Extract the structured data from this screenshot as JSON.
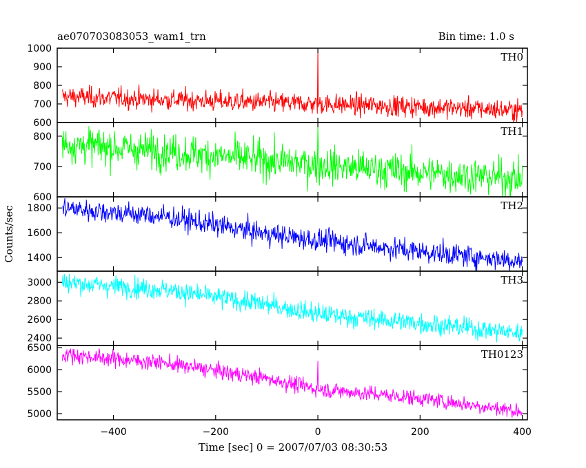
{
  "chart_data": {
    "type": "line",
    "title": "ae070703083053_wam1_trn",
    "bin_time": "Bin time: 1.0 s",
    "xlabel": "Time [sec] 0 = 2007/07/03 08:30:53",
    "ylabel": "Counts/sec",
    "xlim": [
      -510,
      410
    ],
    "x_ticks": [
      -400,
      -200,
      0,
      200,
      400
    ],
    "x_tick_labels": [
      "−400",
      "−200",
      "0",
      "200",
      "400"
    ],
    "bin_seconds": 1.0,
    "x_range": [
      -500,
      400
    ],
    "grid": false,
    "legend": "none",
    "panels": [
      {
        "name": "TH0",
        "color": "#ff0000",
        "ylim": [
          600,
          1000
        ],
        "yticks": [
          600,
          700,
          800,
          900,
          1000
        ],
        "trend": [
          [
            -500,
            740
          ],
          [
            -200,
            715
          ],
          [
            0,
            700
          ],
          [
            200,
            685
          ],
          [
            400,
            665
          ]
        ],
        "noise_sd": 28,
        "spikes": [
          {
            "x": 0,
            "y": 1000
          }
        ]
      },
      {
        "name": "TH1",
        "color": "#00ff00",
        "ylim": [
          600,
          845
        ],
        "yticks": [
          600,
          700,
          800
        ],
        "trend": [
          [
            -500,
            775
          ],
          [
            -300,
            750
          ],
          [
            -100,
            720
          ],
          [
            0,
            705
          ],
          [
            200,
            680
          ],
          [
            400,
            660
          ]
        ],
        "noise_sd": 30,
        "spikes": [
          {
            "x": 0,
            "y": 830
          }
        ]
      },
      {
        "name": "TH2",
        "color": "#0000ff",
        "ylim": [
          1290,
          1890
        ],
        "yticks": [
          1400,
          1600,
          1800
        ],
        "trend": [
          [
            -500,
            1800
          ],
          [
            -300,
            1730
          ],
          [
            -100,
            1590
          ],
          [
            0,
            1540
          ],
          [
            200,
            1450
          ],
          [
            400,
            1370
          ]
        ],
        "noise_sd": 45,
        "spikes": []
      },
      {
        "name": "TH3",
        "color": "#00ffff",
        "ylim": [
          2320,
          3120
        ],
        "yticks": [
          2400,
          2600,
          2800,
          3000
        ],
        "trend": [
          [
            -500,
            3000
          ],
          [
            -300,
            2920
          ],
          [
            -100,
            2760
          ],
          [
            0,
            2660
          ],
          [
            200,
            2560
          ],
          [
            400,
            2450
          ]
        ],
        "noise_sd": 55,
        "spikes": []
      },
      {
        "name": "TH0123",
        "color": "#ff00ff",
        "ylim": [
          4860,
          6550
        ],
        "yticks": [
          5000,
          5500,
          6000,
          6500
        ],
        "trend": [
          [
            -500,
            6350
          ],
          [
            -300,
            6150
          ],
          [
            -100,
            5800
          ],
          [
            0,
            5560
          ],
          [
            200,
            5350
          ],
          [
            400,
            5050
          ]
        ],
        "noise_sd": 90,
        "spikes": [
          {
            "x": 0,
            "y": 6200
          }
        ]
      }
    ]
  }
}
